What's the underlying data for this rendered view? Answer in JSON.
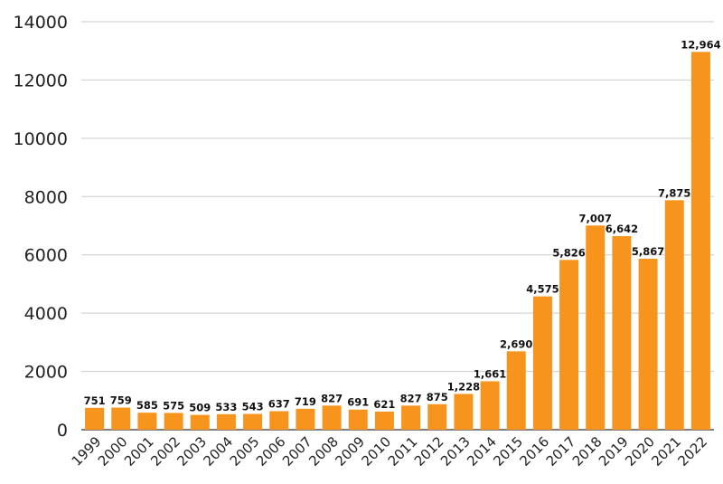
{
  "chart_data": {
    "type": "bar",
    "title": "",
    "xlabel": "",
    "ylabel": "",
    "ylim": [
      0,
      14000
    ],
    "yticks": [
      "0",
      "2000",
      "4000",
      "6000",
      "8000",
      "10000",
      "12000",
      "14000"
    ],
    "grid": true,
    "bar_color": "#F7941D",
    "categories": [
      "1999",
      "2000",
      "2001",
      "2002",
      "2003",
      "2004",
      "2005",
      "2006",
      "2007",
      "2008",
      "2009",
      "2010",
      "2011",
      "2012",
      "2013",
      "2014",
      "2015",
      "2016",
      "2017",
      "2018",
      "2019",
      "2020",
      "2021",
      "2022"
    ],
    "values": [
      751,
      759,
      585,
      575,
      509,
      533,
      543,
      637,
      719,
      827,
      691,
      621,
      827,
      875,
      1228,
      1661,
      2690,
      4575,
      5826,
      7007,
      6642,
      5867,
      7875,
      12964
    ],
    "data_labels": [
      "751",
      "759",
      "585",
      "575",
      "509",
      "533",
      "543",
      "637",
      "719",
      "827",
      "691",
      "621",
      "827",
      "875",
      "1,228",
      "1,661",
      "2,690",
      "4,575",
      "5,826",
      "7,007",
      "6,642",
      "5,867",
      "7,875",
      "12,964"
    ]
  }
}
